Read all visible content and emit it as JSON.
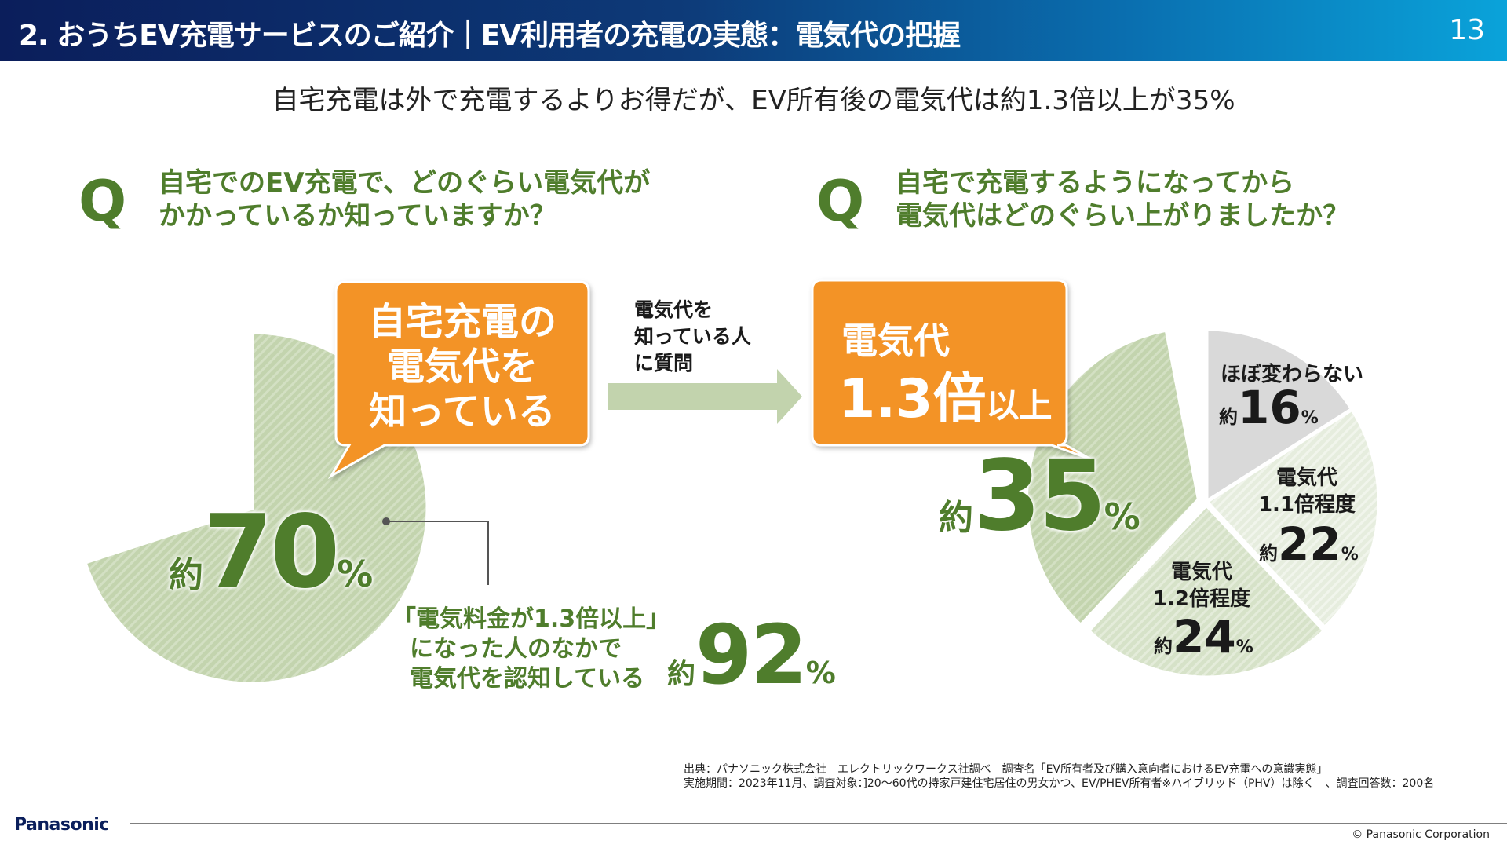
{
  "header": {
    "title": "2. おうちEV充電サービスのご紹介｜EV利用者の充電の実態：電気代の把握",
    "page_number": "13"
  },
  "subtitle": "自宅充電は外で充電するよりお得だが、EV所有後の電気代は約1.3倍以上が35%",
  "left": {
    "q_mark": "Q",
    "question": [
      "自宅でのEV充電で、どのぐらい電気代が",
      "かかっているか知っていますか？"
    ],
    "callout": [
      "自宅充電の",
      "電気代を",
      "知っている"
    ],
    "approx": "約",
    "value": "70",
    "unit": "%",
    "note": [
      "「電気料金が1.3倍以上」",
      "になった人のなかで",
      "電気代を認知している"
    ],
    "note_approx": "約",
    "note_value": "92",
    "note_unit": "%"
  },
  "arrow_label": [
    "電気代を",
    "知っている人",
    "に質問"
  ],
  "right": {
    "q_mark": "Q",
    "question": [
      "自宅で充電するようになってから",
      "電気代はどのぐらい上がりましたか？"
    ],
    "callout": {
      "line1": "電気代",
      "big": "1.3倍",
      "small": "以上"
    },
    "approx": "約",
    "value": "35",
    "unit": "%",
    "slices": [
      {
        "label": [
          "ほぼ変わらない"
        ],
        "approx": "約",
        "value": "16",
        "unit": "%"
      },
      {
        "label": [
          "電気代",
          "1.1倍程度"
        ],
        "approx": "約",
        "value": "22",
        "unit": "%"
      },
      {
        "label": [
          "電気代",
          "1.2倍程度"
        ],
        "approx": "約",
        "value": "24",
        "unit": "%"
      }
    ]
  },
  "chart_data": [
    {
      "type": "pie",
      "categories": [
        "自宅充電の電気代を知っている"
      ],
      "values": [
        70
      ],
      "unit": "%"
    },
    {
      "type": "pie",
      "categories": [
        "ほぼ変わらない",
        "電気代1.1倍程度",
        "電気代1.2倍程度",
        "電気代1.3倍以上"
      ],
      "values": [
        16,
        22,
        24,
        35
      ],
      "unit": "%"
    }
  ],
  "colors": {
    "green_text": "#4f7d2c",
    "orange": "#f39325",
    "pie_green": "#c3d4ae",
    "pie_gray": "#d9d9d9",
    "arrow": "#c2d3ad"
  },
  "footnote": [
    "出典：パナソニック株式会社　エレクトリックワークス社調べ　調査名「EV所有者及び購入意向者におけるEV充電への意識実態」",
    "実施期間：2023年11月、調査対象：]20～60代の持家戸建住宅居住の男女かつ、EV/PHEV所有者※ハイブリッド（PHV）は除く　、調査回答数：200名"
  ],
  "footer": {
    "brand": "Panasonic",
    "copyright": "© Panasonic Corporation"
  }
}
